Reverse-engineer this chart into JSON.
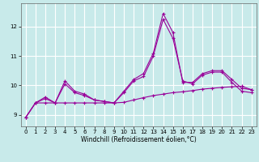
{
  "bg_color": "#c8eaea",
  "line_color": "#990099",
  "grid_color": "#ffffff",
  "xlabel": "Windchill (Refroidissement éolien,°C)",
  "xlim": [
    -0.5,
    23.5
  ],
  "ylim": [
    8.6,
    12.8
  ],
  "yticks": [
    9,
    10,
    11,
    12
  ],
  "xticks": [
    0,
    1,
    2,
    3,
    4,
    5,
    6,
    7,
    8,
    9,
    10,
    11,
    12,
    13,
    14,
    15,
    16,
    17,
    18,
    19,
    20,
    21,
    22,
    23
  ],
  "series": [
    [
      8.9,
      9.4,
      9.6,
      9.4,
      10.15,
      9.8,
      9.7,
      9.5,
      9.45,
      9.4,
      9.8,
      10.2,
      10.4,
      11.1,
      12.45,
      11.8,
      10.1,
      10.1,
      10.4,
      10.5,
      10.5,
      10.2,
      9.9,
      9.85
    ],
    [
      8.9,
      9.4,
      9.55,
      9.4,
      10.05,
      9.75,
      9.65,
      9.5,
      9.45,
      9.4,
      9.75,
      10.15,
      10.3,
      11.0,
      12.25,
      11.6,
      10.15,
      10.05,
      10.35,
      10.45,
      10.45,
      10.1,
      9.8,
      9.75
    ],
    [
      8.9,
      9.4,
      9.4,
      9.4,
      9.4,
      9.4,
      9.4,
      9.4,
      9.4,
      9.4,
      9.42,
      9.5,
      9.58,
      9.65,
      9.7,
      9.75,
      9.78,
      9.82,
      9.87,
      9.9,
      9.93,
      9.95,
      9.97,
      9.85
    ]
  ],
  "marker": "+",
  "markersize": 3,
  "linewidth": 0.8,
  "tick_labelsize": 5,
  "xlabel_fontsize": 5.5
}
